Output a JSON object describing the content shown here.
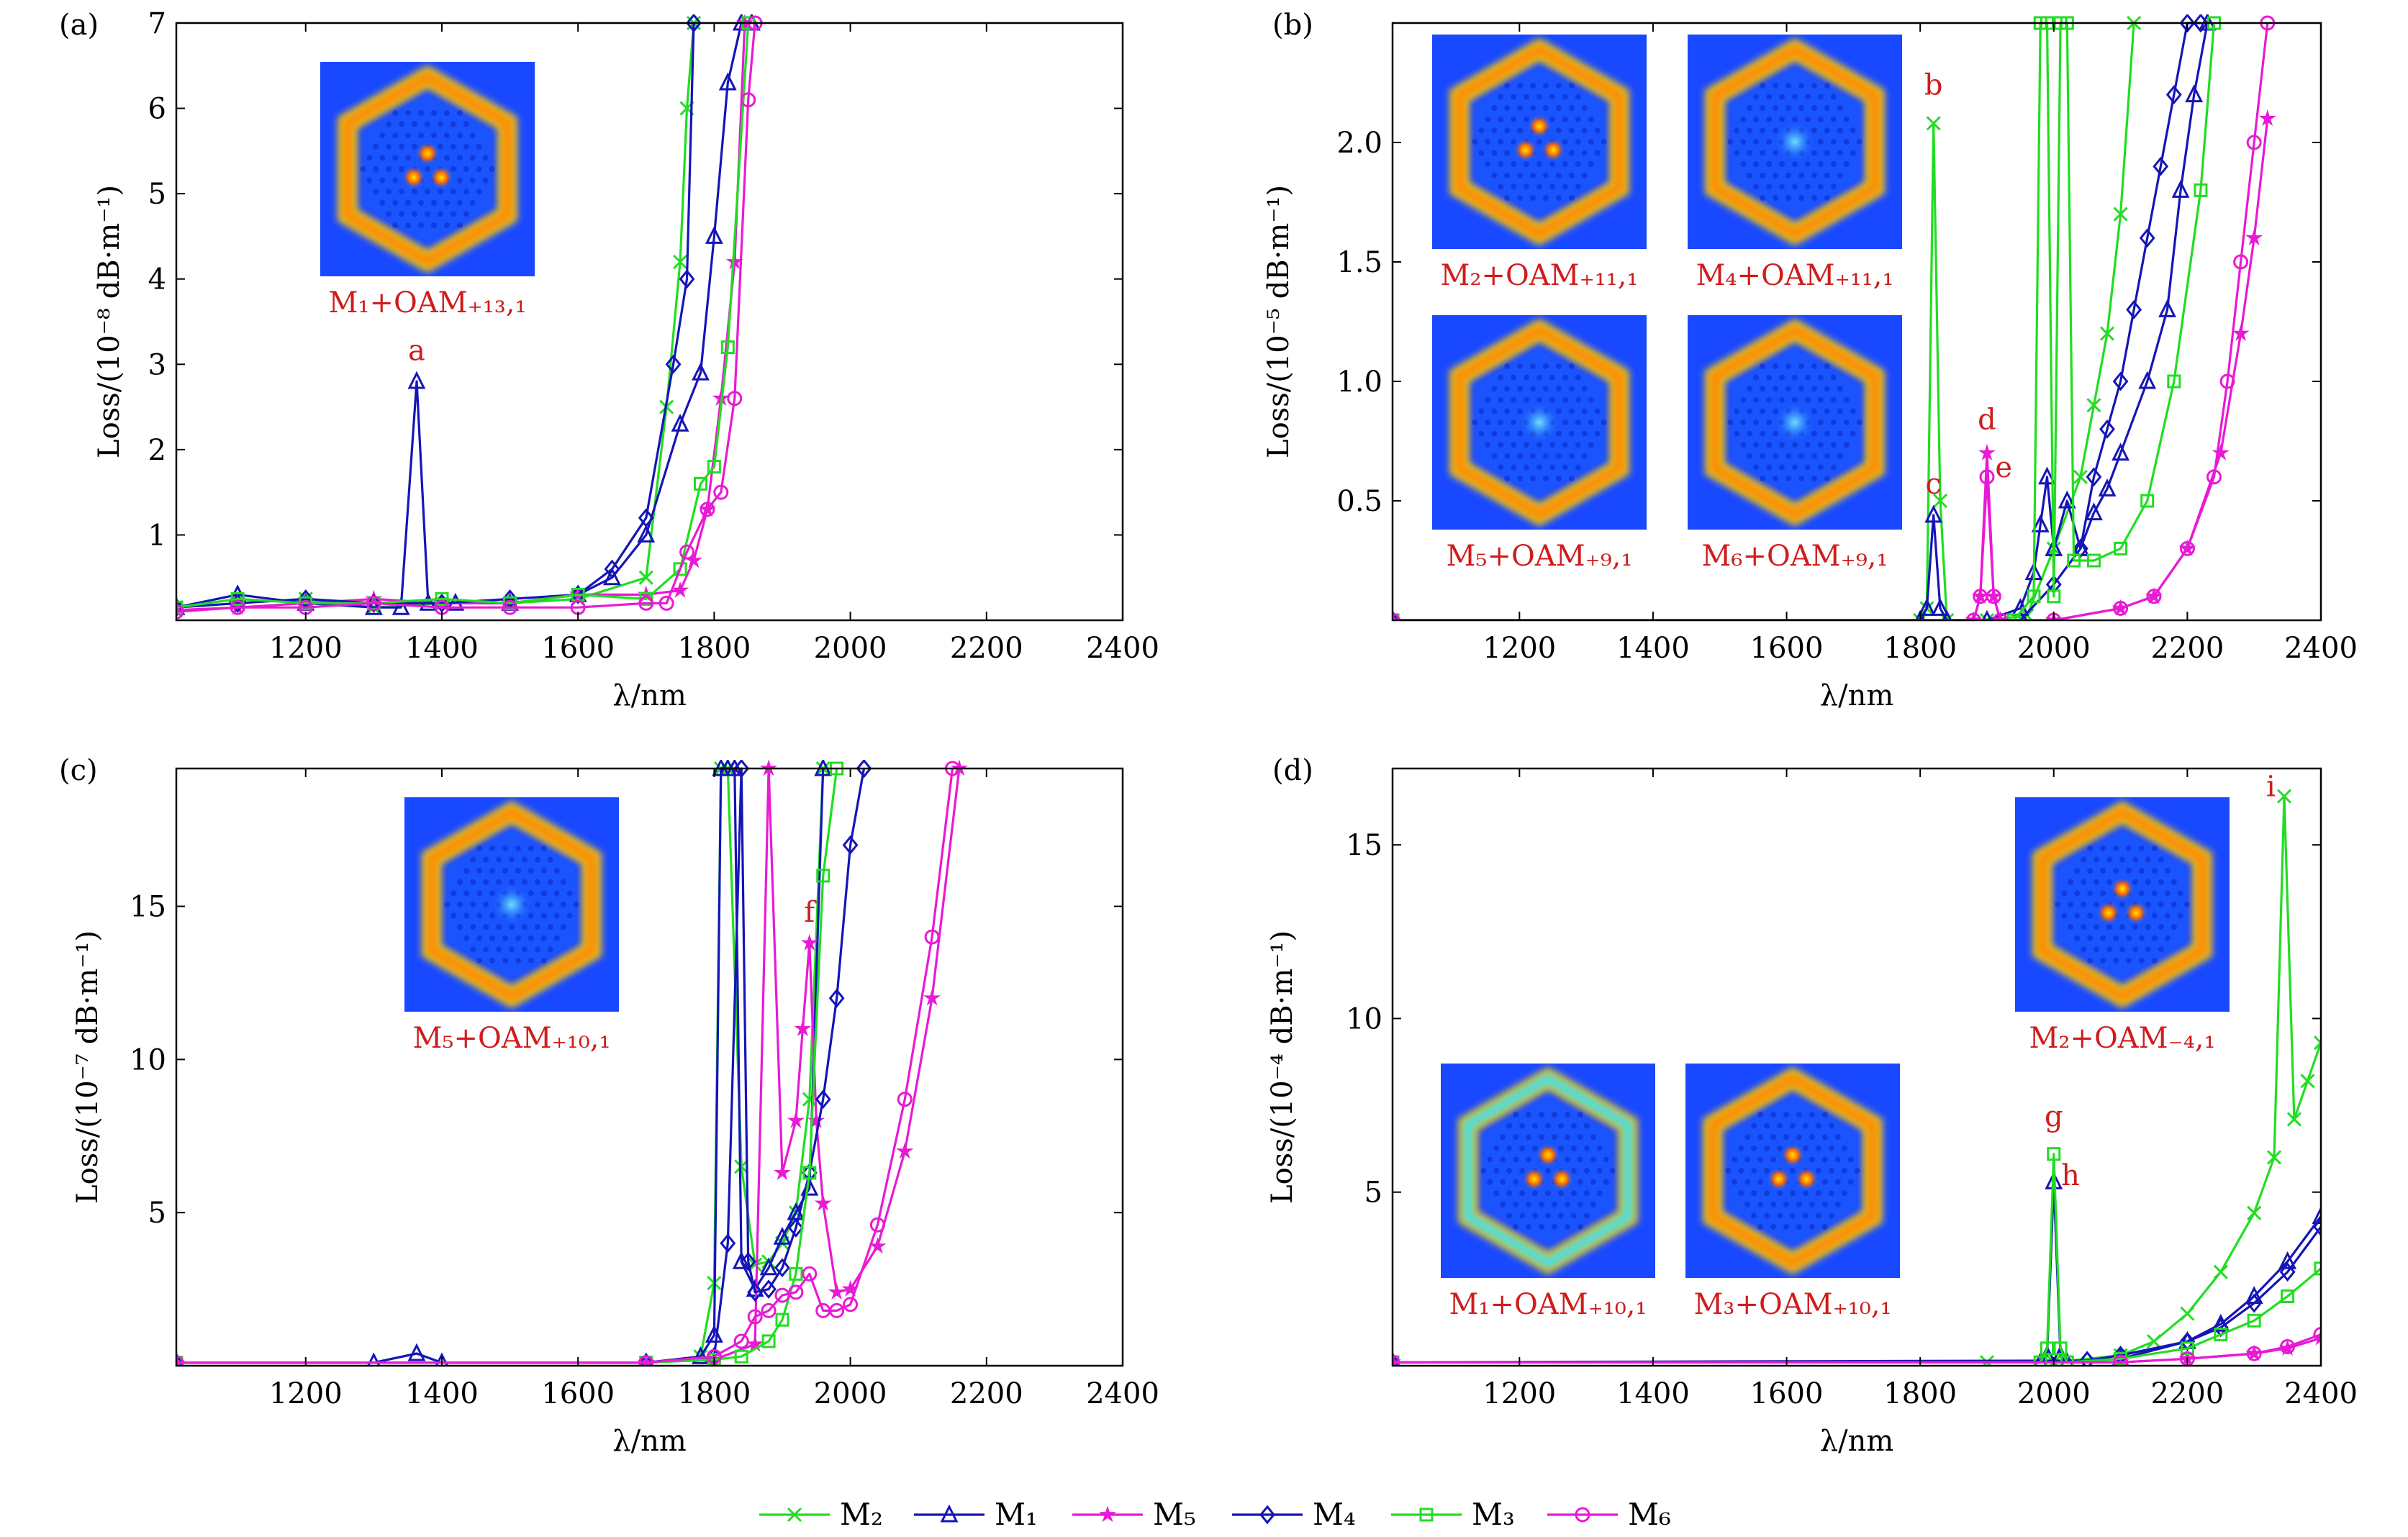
{
  "colors": {
    "green": "#22dd22",
    "blue": "#1515b8",
    "magenta": "#e81ad4",
    "annotation": "#d01c1c",
    "axis": "#000000"
  },
  "legend": {
    "placement": "bottom-center",
    "items": [
      {
        "label": "M₂",
        "color": "#22dd22",
        "marker": "x"
      },
      {
        "label": "M₁",
        "color": "#1515b8",
        "marker": "triangle"
      },
      {
        "label": "M₅",
        "color": "#e81ad4",
        "marker": "star"
      },
      {
        "label": "M₄",
        "color": "#1515b8",
        "marker": "diamond"
      },
      {
        "label": "M₃",
        "color": "#22dd22",
        "marker": "square"
      },
      {
        "label": "M₆",
        "color": "#e81ad4",
        "marker": "circle"
      }
    ]
  },
  "chart_data": [
    {
      "panel": "(a)",
      "type": "line",
      "xlabel": "λ/nm",
      "ylabel": "Loss/(10⁻⁸ dB·m⁻¹)",
      "xlim": [
        1010,
        2400
      ],
      "ylim": [
        0,
        7
      ],
      "xticks": [
        1200,
        1400,
        1600,
        1800,
        2000,
        2200,
        2400
      ],
      "yticks": [
        1,
        2,
        3,
        4,
        5,
        6,
        7
      ],
      "insets": [
        {
          "caption": "M₁+OAM₊₁₃,₁",
          "style": "three"
        }
      ],
      "annotations": [
        {
          "label": "a",
          "x": 1363,
          "y": 3.05
        }
      ],
      "series": [
        {
          "name": "M₂",
          "x": [
            1010,
            1100,
            1200,
            1300,
            1400,
            1500,
            1600,
            1700,
            1730,
            1750,
            1760,
            1770
          ],
          "y": [
            0.15,
            0.2,
            0.25,
            0.15,
            0.2,
            0.2,
            0.25,
            0.5,
            2.5,
            4.2,
            6,
            7
          ]
        },
        {
          "name": "M₁",
          "x": [
            1010,
            1100,
            1200,
            1300,
            1340,
            1363,
            1380,
            1420,
            1500,
            1600,
            1650,
            1700,
            1750,
            1780,
            1800,
            1820,
            1840,
            1855
          ],
          "y": [
            0.15,
            0.3,
            0.2,
            0.15,
            0.15,
            2.8,
            0.2,
            0.2,
            0.2,
            0.3,
            0.5,
            1,
            2.3,
            2.9,
            4.5,
            6.3,
            7,
            7
          ]
        },
        {
          "name": "M₅",
          "x": [
            1010,
            1100,
            1200,
            1300,
            1400,
            1500,
            1600,
            1700,
            1750,
            1770,
            1790,
            1810,
            1830,
            1845
          ],
          "y": [
            0.12,
            0.15,
            0.2,
            0.25,
            0.2,
            0.2,
            0.3,
            0.3,
            0.35,
            0.7,
            1.3,
            2.6,
            4.2,
            7
          ]
        },
        {
          "name": "M₄",
          "x": [
            1010,
            1100,
            1200,
            1300,
            1400,
            1500,
            1600,
            1650,
            1700,
            1740,
            1760,
            1770
          ],
          "y": [
            0.15,
            0.2,
            0.25,
            0.2,
            0.2,
            0.25,
            0.3,
            0.6,
            1.2,
            3,
            4,
            7
          ]
        },
        {
          "name": "M₃",
          "x": [
            1010,
            1100,
            1200,
            1300,
            1400,
            1500,
            1600,
            1700,
            1750,
            1780,
            1800,
            1820,
            1850
          ],
          "y": [
            0.15,
            0.25,
            0.2,
            0.2,
            0.25,
            0.2,
            0.3,
            0.25,
            0.6,
            1.6,
            1.8,
            3.2,
            7
          ]
        },
        {
          "name": "M₆",
          "x": [
            1010,
            1100,
            1200,
            1300,
            1400,
            1500,
            1600,
            1700,
            1730,
            1760,
            1790,
            1810,
            1830,
            1850,
            1860
          ],
          "y": [
            0.1,
            0.15,
            0.15,
            0.2,
            0.15,
            0.15,
            0.15,
            0.2,
            0.2,
            0.8,
            1.3,
            1.5,
            2.6,
            6.1,
            7
          ]
        }
      ]
    },
    {
      "panel": "(b)",
      "type": "line",
      "xlabel": "λ/nm",
      "ylabel": "Loss/(10⁻⁵ dB·m⁻¹)",
      "xlim": [
        1010,
        2400
      ],
      "ylim": [
        0,
        2.5
      ],
      "xticks": [
        1200,
        1400,
        1600,
        1800,
        2000,
        2200,
        2400
      ],
      "yticks": [
        0.5,
        1.0,
        1.5,
        2.0
      ],
      "insets": [
        {
          "caption": "M₂+OAM₊₁₁,₁",
          "style": "three"
        },
        {
          "caption": "M₄+OAM₊₁₁,₁",
          "style": "faint"
        },
        {
          "caption": "M₅+OAM₊₉,₁",
          "style": "faint"
        },
        {
          "caption": "M₆+OAM₊₉,₁",
          "style": "faint"
        }
      ],
      "annotations": [
        {
          "label": "b",
          "x": 1820,
          "y": 2.2
        },
        {
          "label": "c",
          "x": 1820,
          "y": 0.53
        },
        {
          "label": "d",
          "x": 1900,
          "y": 0.8
        },
        {
          "label": "e",
          "x": 1925,
          "y": 0.6
        }
      ],
      "series": [
        {
          "name": "M₂",
          "x": [
            1010,
            1800,
            1810,
            1820,
            1830,
            1840,
            1900,
            1960,
            2000,
            2040,
            2060,
            2080,
            2100,
            2120
          ],
          "y": [
            0,
            0,
            0.05,
            2.08,
            0.5,
            0,
            0,
            0.02,
            0.3,
            0.6,
            0.9,
            1.2,
            1.7,
            2.5
          ]
        },
        {
          "name": "M₁",
          "x": [
            1010,
            1800,
            1810,
            1820,
            1830,
            1840,
            1900,
            1950,
            1970,
            1980,
            1990,
            2000,
            2020,
            2040,
            2060,
            2080,
            2100,
            2140,
            2170,
            2190,
            2210,
            2230
          ],
          "y": [
            0,
            0,
            0.05,
            0.44,
            0.05,
            0,
            0,
            0.05,
            0.2,
            0.4,
            0.6,
            0.3,
            0.5,
            0.3,
            0.45,
            0.55,
            0.7,
            1.0,
            1.3,
            1.8,
            2.2,
            2.5
          ]
        },
        {
          "name": "M₅",
          "x": [
            1010,
            1880,
            1890,
            1900,
            1910,
            1920,
            2000,
            2100,
            2150,
            2200,
            2250,
            2280,
            2300,
            2320
          ],
          "y": [
            0,
            0,
            0.1,
            0.7,
            0.1,
            0,
            0,
            0.05,
            0.1,
            0.3,
            0.7,
            1.2,
            1.6,
            2.1
          ]
        },
        {
          "name": "M₄",
          "x": [
            1010,
            1950,
            2000,
            2040,
            2060,
            2080,
            2100,
            2120,
            2140,
            2160,
            2180,
            2200,
            2220
          ],
          "y": [
            0,
            0,
            0.15,
            0.3,
            0.6,
            0.8,
            1.0,
            1.3,
            1.6,
            1.9,
            2.2,
            2.5,
            2.5
          ]
        },
        {
          "name": "M₃",
          "x": [
            1010,
            1940,
            1970,
            1980,
            1990,
            2000,
            2010,
            2020,
            2030,
            2060,
            2100,
            2140,
            2180,
            2220,
            2240
          ],
          "y": [
            0,
            0,
            0.1,
            2.5,
            2.5,
            0.1,
            2.5,
            2.5,
            0.25,
            0.25,
            0.3,
            0.5,
            1.0,
            1.8,
            2.5
          ]
        },
        {
          "name": "M₆",
          "x": [
            1010,
            1880,
            1890,
            1900,
            1910,
            1920,
            2000,
            2100,
            2150,
            2200,
            2240,
            2260,
            2280,
            2300,
            2320
          ],
          "y": [
            0,
            0,
            0.1,
            0.6,
            0.1,
            0,
            0,
            0.05,
            0.1,
            0.3,
            0.6,
            1.0,
            1.5,
            2.0,
            2.5
          ]
        }
      ]
    },
    {
      "panel": "(c)",
      "type": "line",
      "xlabel": "λ/nm",
      "ylabel": "Loss/(10⁻⁷ dB·m⁻¹)",
      "xlim": [
        1010,
        2400
      ],
      "ylim": [
        0,
        19.5
      ],
      "xticks": [
        1200,
        1400,
        1600,
        1800,
        2000,
        2200,
        2400
      ],
      "yticks": [
        5,
        10,
        15
      ],
      "insets": [
        {
          "caption": "M₅+OAM₊₁₀,₁",
          "style": "faint"
        }
      ],
      "annotations": [
        {
          "label": "f",
          "x": 1940,
          "y": 14.5
        }
      ],
      "series": [
        {
          "name": "M₂",
          "x": [
            1010,
            1700,
            1780,
            1800,
            1810,
            1820,
            1840,
            1860,
            1880,
            1900,
            1920,
            1940,
            1960
          ],
          "y": [
            0.1,
            0.1,
            0.3,
            2.7,
            19.5,
            19.5,
            6.5,
            3.3,
            3.4,
            4,
            5,
            8.7,
            19.5
          ]
        },
        {
          "name": "M₁",
          "x": [
            1010,
            1300,
            1363,
            1400,
            1700,
            1780,
            1800,
            1810,
            1820,
            1830,
            1840,
            1860,
            1880,
            1900,
            1920,
            1940,
            1960
          ],
          "y": [
            0.1,
            0.1,
            0.4,
            0.1,
            0.1,
            0.3,
            1.0,
            19.5,
            19.5,
            19.5,
            3.4,
            2.5,
            3.2,
            4.2,
            5,
            5.8,
            19.5
          ]
        },
        {
          "name": "M₅",
          "x": [
            1010,
            1700,
            1800,
            1860,
            1880,
            1900,
            1920,
            1930,
            1940,
            1950,
            1960,
            1980,
            2000,
            2040,
            2080,
            2120,
            2160
          ],
          "y": [
            0.1,
            0.1,
            0.2,
            0.7,
            19.5,
            6.3,
            8,
            11,
            13.8,
            8,
            5.3,
            2.4,
            2.5,
            3.9,
            7,
            12,
            19.5
          ]
        },
        {
          "name": "M₄",
          "x": [
            1010,
            1700,
            1800,
            1820,
            1840,
            1850,
            1860,
            1880,
            1900,
            1920,
            1940,
            1960,
            1980,
            2000,
            2020
          ],
          "y": [
            0.1,
            0.1,
            0.3,
            4,
            19.5,
            3.4,
            2.4,
            2.5,
            3.2,
            4.5,
            6.3,
            8.7,
            12,
            17,
            19.5
          ]
        },
        {
          "name": "M₃",
          "x": [
            1010,
            1700,
            1800,
            1840,
            1880,
            1900,
            1920,
            1940,
            1960,
            1980
          ],
          "y": [
            0.1,
            0.1,
            0.2,
            0.3,
            0.8,
            1.5,
            3,
            6.3,
            16,
            19.5
          ]
        },
        {
          "name": "M₆",
          "x": [
            1010,
            1700,
            1800,
            1840,
            1860,
            1880,
            1900,
            1920,
            1940,
            1960,
            1980,
            2000,
            2040,
            2080,
            2120,
            2150
          ],
          "y": [
            0.1,
            0.1,
            0.3,
            0.8,
            1.6,
            1.8,
            2.3,
            2.4,
            3,
            1.8,
            1.8,
            2,
            4.6,
            8.7,
            14,
            19.5
          ]
        }
      ]
    },
    {
      "panel": "(d)",
      "type": "line",
      "xlabel": "λ/nm",
      "ylabel": "Loss/(10⁻⁴ dB·m⁻¹)",
      "xlim": [
        1010,
        2400
      ],
      "ylim": [
        0,
        17.2
      ],
      "xticks": [
        1200,
        1400,
        1600,
        1800,
        2000,
        2200,
        2400
      ],
      "yticks": [
        5,
        10,
        15
      ],
      "insets": [
        {
          "caption": "M₂+OAM₋₄,₁",
          "style": "three"
        },
        {
          "caption": "M₁+OAM₊₁₀,₁",
          "style": "cyan"
        },
        {
          "caption": "M₃+OAM₊₁₀,₁",
          "style": "three"
        }
      ],
      "annotations": [
        {
          "label": "g",
          "x": 2000,
          "y": 6.9
        },
        {
          "label": "h",
          "x": 2025,
          "y": 5.2
        },
        {
          "label": "i",
          "x": 2325,
          "y": 16.4
        }
      ],
      "series": [
        {
          "name": "M₂",
          "x": [
            1010,
            1900,
            2000,
            2100,
            2150,
            2200,
            2250,
            2300,
            2330,
            2345,
            2360,
            2380,
            2400
          ],
          "y": [
            0.1,
            0.1,
            0.1,
            0.3,
            0.7,
            1.5,
            2.7,
            4.4,
            6,
            16.4,
            7.1,
            8.2,
            9.3
          ]
        },
        {
          "name": "M₁",
          "x": [
            1010,
            1980,
            1990,
            2000,
            2010,
            2020,
            2100,
            2200,
            2250,
            2300,
            2350,
            2400
          ],
          "y": [
            0.1,
            0.1,
            0.3,
            5.3,
            0.3,
            0.1,
            0.2,
            0.7,
            1.2,
            2,
            3,
            4.3
          ]
        },
        {
          "name": "M₅",
          "x": [
            1010,
            2100,
            2200,
            2300,
            2350,
            2400
          ],
          "y": [
            0.1,
            0.1,
            0.2,
            0.35,
            0.5,
            0.8
          ]
        },
        {
          "name": "M₄",
          "x": [
            1010,
            2050,
            2100,
            2200,
            2250,
            2300,
            2350,
            2400
          ],
          "y": [
            0.1,
            0.15,
            0.3,
            0.7,
            1.1,
            1.8,
            2.7,
            4
          ]
        },
        {
          "name": "M₃",
          "x": [
            1010,
            1980,
            1990,
            2000,
            2010,
            2020,
            2100,
            2200,
            2250,
            2300,
            2350,
            2400
          ],
          "y": [
            0.1,
            0.1,
            0.5,
            6.1,
            0.5,
            0.1,
            0.2,
            0.5,
            0.9,
            1.3,
            2,
            2.8
          ]
        },
        {
          "name": "M₆",
          "x": [
            1010,
            2100,
            2200,
            2300,
            2350,
            2400
          ],
          "y": [
            0.1,
            0.1,
            0.2,
            0.35,
            0.55,
            0.9
          ]
        }
      ]
    }
  ]
}
